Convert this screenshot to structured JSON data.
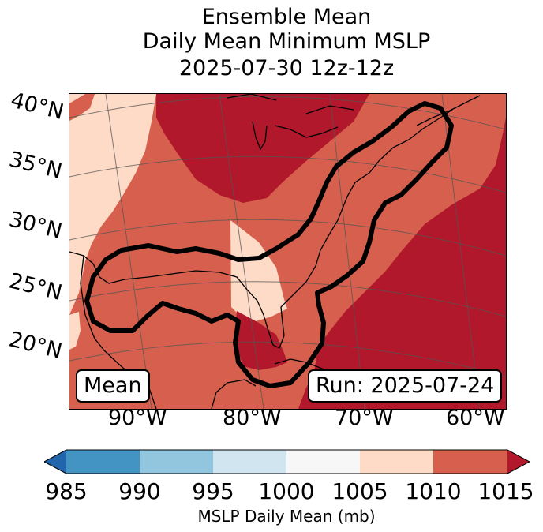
{
  "title": {
    "line1": "Ensemble Mean",
    "line2": "Daily Mean Minimum MSLP",
    "line3": "2025-07-30 12z-12z"
  },
  "axes": {
    "lat_labels": [
      "40°N",
      "35°N",
      "30°N",
      "25°N",
      "20°N"
    ],
    "lon_labels": [
      "90°W",
      "80°W",
      "70°W",
      "60°W"
    ]
  },
  "annotations": {
    "mean_label": "Mean",
    "run_label": "Run: 2025-07-24"
  },
  "colorbar": {
    "label": "MSLP Daily Mean (mb)",
    "ticks": [
      "985",
      "990",
      "995",
      "1000",
      "1005",
      "1010",
      "1015"
    ],
    "colors": [
      "#2166ac",
      "#4393c3",
      "#92c5de",
      "#d1e5f0",
      "#f7f7f7",
      "#fddbc7",
      "#d6604d",
      "#b2182b"
    ]
  },
  "map_colors": {
    "c1005": "#fddbc7",
    "c1010": "#d6604d",
    "c1015": "#b2182b",
    "contour": "#000000",
    "coast": "#000000",
    "grid": "#555555"
  }
}
